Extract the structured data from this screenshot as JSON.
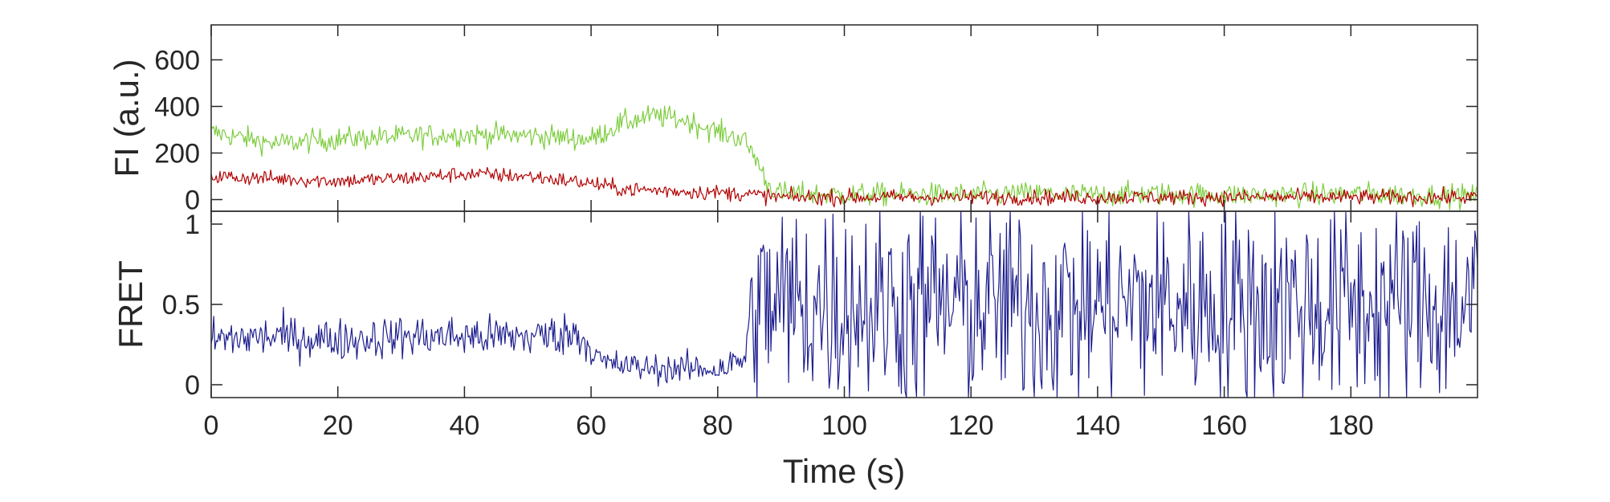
{
  "chart_data": [
    {
      "type": "line",
      "ylabel": "FI (a.u.)",
      "xlim": [
        0,
        200
      ],
      "ylim": [
        -50,
        750
      ],
      "yticks": [
        0,
        200,
        400,
        600
      ],
      "ytick_labels": [
        "0",
        "200",
        "400",
        "600"
      ],
      "grid": false,
      "legend": "none",
      "x": [
        0,
        10,
        20,
        30,
        40,
        50,
        60,
        65,
        70,
        75,
        80,
        84,
        86,
        88,
        90,
        100,
        110,
        120,
        130,
        140,
        150,
        160,
        170,
        180,
        190,
        200
      ],
      "series": [
        {
          "color": "#7ccc3c",
          "values": [
            290,
            240,
            260,
            270,
            280,
            275,
            260,
            330,
            360,
            340,
            290,
            260,
            180,
            60,
            25,
            20,
            22,
            20,
            25,
            20,
            25,
            20,
            20,
            25,
            20,
            15
          ],
          "noise": 45
        },
        {
          "color": "#b20000",
          "values": [
            100,
            90,
            80,
            90,
            110,
            100,
            70,
            45,
            40,
            35,
            30,
            25,
            20,
            15,
            10,
            10,
            10,
            10,
            10,
            10,
            10,
            10,
            10,
            10,
            10,
            10
          ],
          "noise": 30
        }
      ]
    },
    {
      "type": "line",
      "xlabel": "Time (s)",
      "ylabel": "FRET",
      "xlim": [
        0,
        200
      ],
      "ylim": [
        -0.08,
        1.08
      ],
      "xticks": [
        0,
        20,
        40,
        60,
        80,
        100,
        120,
        140,
        160,
        180
      ],
      "xtick_labels": [
        "0",
        "20",
        "40",
        "60",
        "80",
        "100",
        "120",
        "140",
        "160",
        "180"
      ],
      "yticks": [
        0,
        0.5,
        1
      ],
      "ytick_labels": [
        "0",
        "0.5",
        "1"
      ],
      "grid": false,
      "legend": "none",
      "x": [
        0,
        10,
        20,
        30,
        40,
        50,
        58,
        62,
        70,
        80,
        84,
        86,
        200
      ],
      "series": [
        {
          "color": "#1f1f8f",
          "values": [
            0.28,
            0.3,
            0.28,
            0.3,
            0.3,
            0.3,
            0.32,
            0.13,
            0.1,
            0.1,
            0.15,
            0.5,
            0.5
          ],
          "noise": [
            0.12,
            0.12,
            0.12,
            0.12,
            0.12,
            0.12,
            0.12,
            0.09,
            0.08,
            0.09,
            0.1,
            0.6,
            0.6
          ]
        }
      ]
    }
  ]
}
